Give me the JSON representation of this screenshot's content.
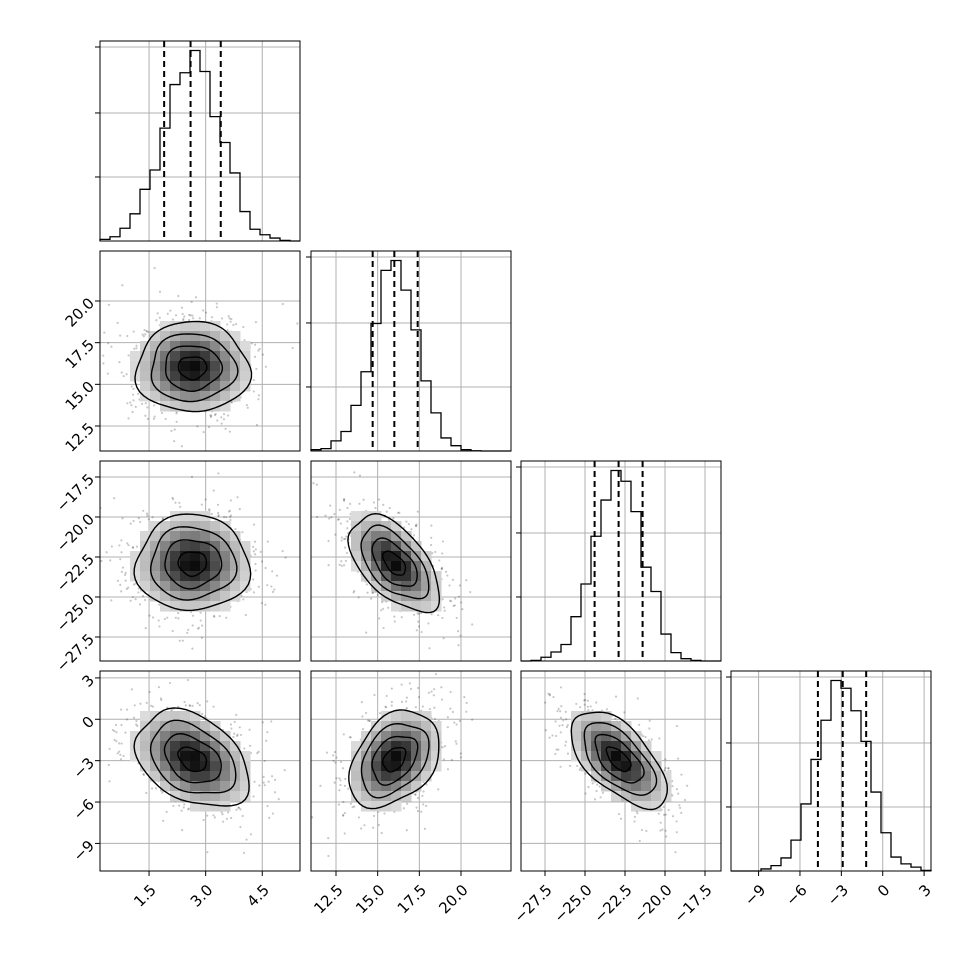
{
  "chart_data": {
    "type": "corner",
    "grid": true,
    "dimensions": [
      {
        "range": [
          0.2,
          5.5
        ],
        "ticks": [
          1.5,
          3.0,
          4.5
        ],
        "tick_labels": [
          "1.5",
          "3.0",
          "4.5"
        ],
        "quantiles": [
          1.9,
          2.6,
          3.4
        ],
        "mean": 2.65,
        "sd": 0.75
      },
      {
        "range": [
          11.0,
          23.0
        ],
        "ticks": [
          12.5,
          15.0,
          17.5,
          20.0
        ],
        "tick_labels": [
          "12.5",
          "15.0",
          "17.5",
          "20.0"
        ],
        "quantiles": [
          14.7,
          16.0,
          17.4
        ],
        "mean": 16.0,
        "sd": 1.35
      },
      {
        "range": [
          -29.0,
          -16.5
        ],
        "ticks": [
          -27.5,
          -25.0,
          -22.5,
          -20.0,
          -17.5
        ],
        "tick_labels": [
          "−27.5",
          "−25.0",
          "−22.5",
          "−20.0",
          "−17.5"
        ],
        "quantiles": [
          -24.4,
          -22.9,
          -21.4
        ],
        "mean": -22.9,
        "sd": 1.5
      },
      {
        "range": [
          -11.0,
          3.5
        ],
        "ticks": [
          -9,
          -6,
          -3,
          0,
          3
        ],
        "tick_labels": [
          "−9",
          "−6",
          "−3",
          "0",
          "3"
        ],
        "quantiles": [
          -4.7,
          -2.9,
          -1.2
        ],
        "mean": -2.9,
        "sd": 1.75
      }
    ],
    "correlations": {
      "1-0": 0.0,
      "2-0": 0.0,
      "2-1": -0.55,
      "3-0": -0.35,
      "3-1": 0.35,
      "3-2": -0.6
    }
  }
}
